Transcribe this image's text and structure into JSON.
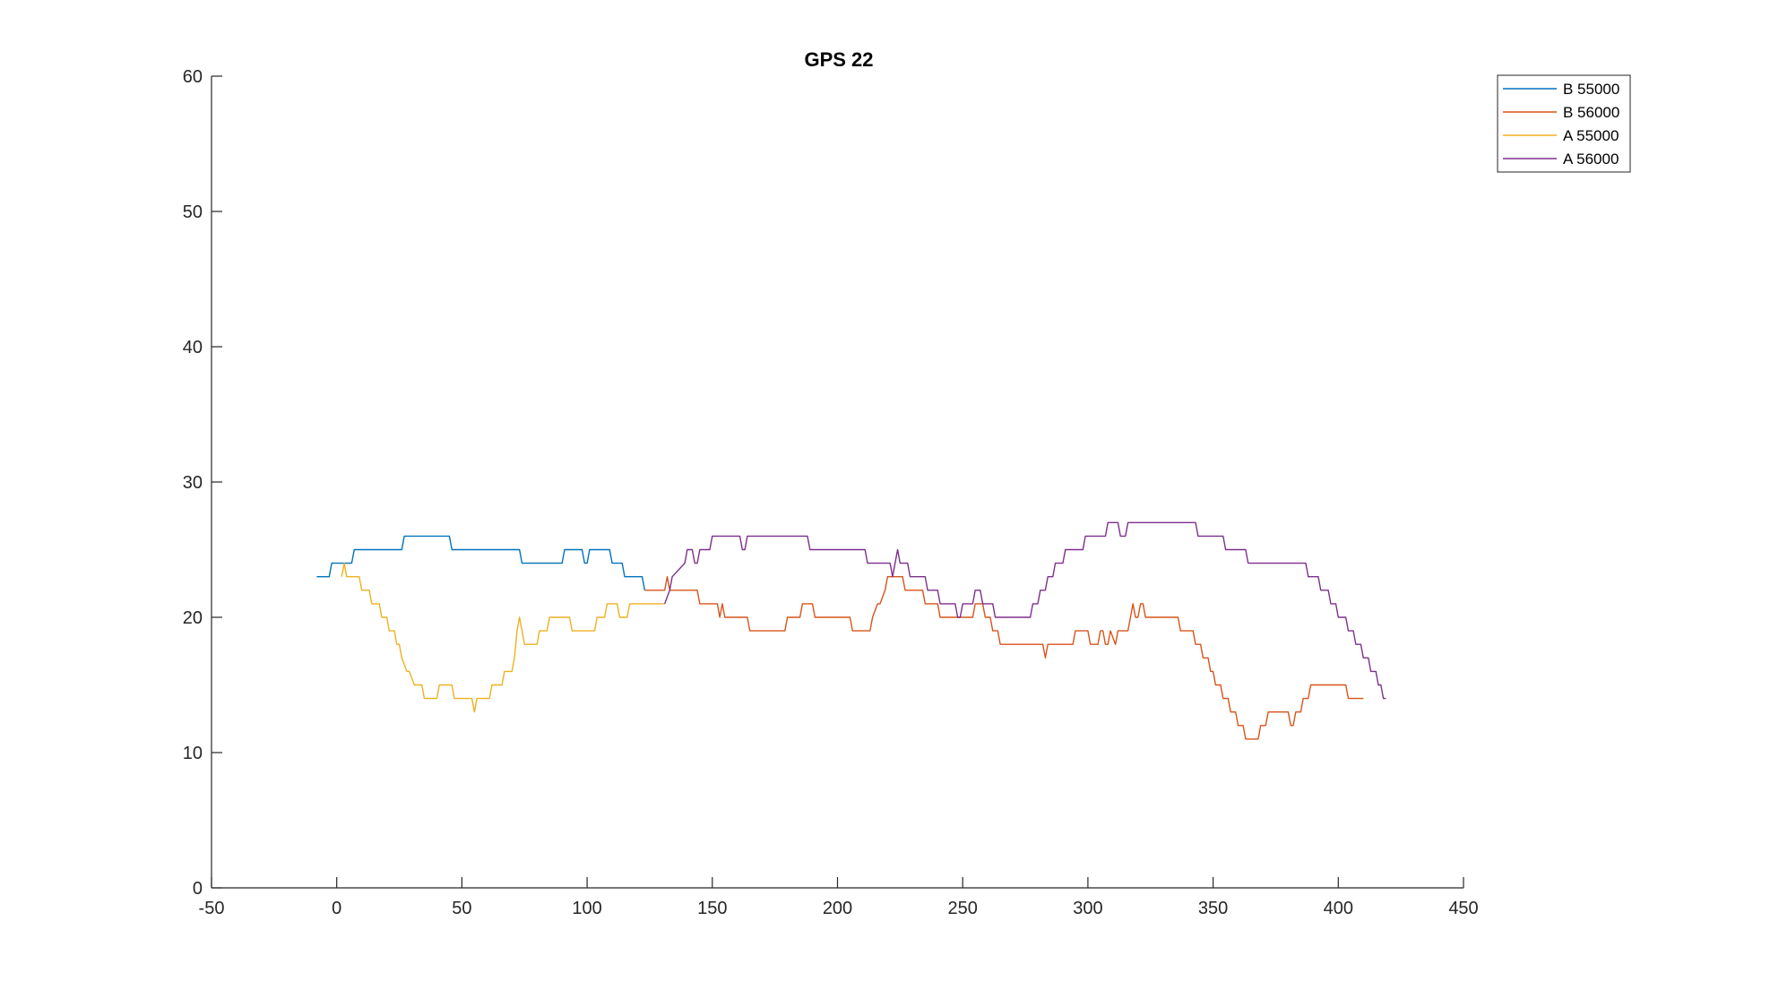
{
  "chart_data": {
    "type": "line",
    "title": "GPS 22",
    "xlabel": "",
    "ylabel": "",
    "xlim": [
      -50,
      450
    ],
    "ylim": [
      0,
      60
    ],
    "xticks": [
      -50,
      0,
      50,
      100,
      150,
      200,
      250,
      300,
      350,
      400,
      450
    ],
    "yticks": [
      0,
      10,
      20,
      30,
      40,
      50,
      60
    ],
    "grid": false,
    "legend": "top-right",
    "series": [
      {
        "name": "B 55000",
        "color": "#0072BD",
        "x": [
          -8,
          -3,
          -2,
          0,
          6,
          7,
          26,
          27,
          45,
          46,
          73,
          74,
          90,
          91,
          98,
          99,
          100,
          101,
          109,
          110,
          114,
          115,
          118,
          119,
          122,
          123
        ],
        "y": [
          23,
          23,
          24,
          24,
          24,
          25,
          25,
          26,
          26,
          25,
          25,
          24,
          24,
          25,
          25,
          24,
          24,
          25,
          25,
          24,
          24,
          23,
          23,
          23,
          23,
          22
        ]
      },
      {
        "name": "B 56000",
        "color": "#D95319",
        "x": [
          123,
          131,
          132,
          133,
          134,
          144,
          145,
          152,
          153,
          154,
          155,
          164,
          165,
          179,
          180,
          185,
          186,
          190,
          191,
          205,
          206,
          213,
          214,
          216,
          217,
          219,
          220,
          226,
          227,
          234,
          235,
          240,
          241,
          254,
          255,
          258,
          259,
          261,
          262,
          264,
          265,
          282,
          283,
          284,
          285,
          294,
          295,
          300,
          301,
          304,
          305,
          306,
          307,
          308,
          309,
          311,
          312,
          316,
          317,
          318,
          319,
          320,
          321,
          322,
          323,
          324,
          325,
          336,
          337,
          342,
          343,
          345,
          346,
          348,
          349,
          350,
          351,
          353,
          354,
          356,
          357,
          359,
          360,
          362,
          363,
          365,
          366,
          368,
          369,
          371,
          372,
          374,
          375,
          380,
          381,
          382,
          383,
          385,
          386,
          388,
          389,
          393,
          394,
          403,
          404,
          410
        ],
        "y": [
          22,
          22,
          23,
          22,
          22,
          22,
          21,
          21,
          20,
          21,
          20,
          20,
          19,
          19,
          20,
          20,
          21,
          21,
          20,
          20,
          19,
          19,
          20,
          21,
          21,
          22,
          23,
          23,
          22,
          22,
          21,
          21,
          20,
          20,
          21,
          21,
          20,
          20,
          19,
          19,
          18,
          18,
          17,
          18,
          18,
          18,
          19,
          19,
          18,
          18,
          19,
          19,
          18,
          18,
          19,
          18,
          19,
          19,
          20,
          21,
          20,
          20,
          21,
          21,
          20,
          20,
          20,
          20,
          19,
          19,
          18,
          18,
          17,
          17,
          16,
          16,
          15,
          15,
          14,
          14,
          13,
          13,
          12,
          12,
          11,
          11,
          11,
          11,
          12,
          12,
          13,
          13,
          13,
          13,
          12,
          12,
          13,
          13,
          14,
          14,
          15,
          15,
          15,
          15,
          14,
          14
        ]
      },
      {
        "name": "A 55000",
        "color": "#EDB120",
        "x": [
          2,
          3,
          4,
          9,
          10,
          13,
          14,
          17,
          18,
          20,
          21,
          23,
          24,
          25,
          26,
          28,
          29,
          31,
          32,
          34,
          35,
          40,
          41,
          46,
          47,
          54,
          55,
          56,
          57,
          61,
          62,
          66,
          67,
          70,
          71,
          72,
          73,
          74,
          75,
          80,
          81,
          84,
          85,
          93,
          94,
          103,
          104,
          107,
          108,
          112,
          113,
          116,
          117,
          120,
          121,
          130,
          131
        ],
        "y": [
          23,
          24,
          23,
          23,
          22,
          22,
          21,
          21,
          20,
          20,
          19,
          19,
          18,
          18,
          17,
          16,
          16,
          15,
          15,
          15,
          14,
          14,
          15,
          15,
          14,
          14,
          13,
          14,
          14,
          14,
          15,
          15,
          16,
          16,
          17,
          19,
          20,
          19,
          18,
          18,
          19,
          19,
          20,
          20,
          19,
          19,
          20,
          20,
          21,
          21,
          20,
          20,
          21,
          21,
          21,
          21,
          21
        ]
      },
      {
        "name": "A 56000",
        "color": "#7E2F8E",
        "x": [
          131,
          133,
          134,
          139,
          140,
          142,
          143,
          144,
          145,
          149,
          150,
          161,
          162,
          163,
          164,
          188,
          189,
          211,
          212,
          221,
          222,
          224,
          225,
          228,
          229,
          235,
          236,
          240,
          241,
          247,
          248,
          249,
          250,
          254,
          255,
          257,
          258,
          262,
          263,
          277,
          278,
          280,
          281,
          283,
          284,
          286,
          287,
          290,
          291,
          298,
          299,
          307,
          308,
          312,
          313,
          315,
          316,
          343,
          344,
          354,
          355,
          363,
          364,
          387,
          388,
          392,
          393,
          396,
          397,
          399,
          400,
          403,
          404,
          406,
          407,
          409,
          410,
          412,
          413,
          415,
          416,
          417,
          418,
          419
        ],
        "y": [
          21,
          22,
          23,
          24,
          25,
          25,
          24,
          24,
          25,
          25,
          26,
          26,
          25,
          25,
          26,
          26,
          25,
          25,
          24,
          24,
          23,
          25,
          24,
          24,
          23,
          23,
          22,
          22,
          21,
          21,
          20,
          20,
          21,
          21,
          22,
          22,
          21,
          21,
          20,
          20,
          21,
          21,
          22,
          22,
          23,
          23,
          24,
          24,
          25,
          25,
          26,
          26,
          27,
          27,
          26,
          26,
          27,
          27,
          26,
          26,
          25,
          25,
          24,
          24,
          23,
          23,
          22,
          22,
          21,
          21,
          20,
          20,
          19,
          19,
          18,
          18,
          17,
          17,
          16,
          16,
          15,
          15,
          14,
          14
        ]
      }
    ]
  }
}
